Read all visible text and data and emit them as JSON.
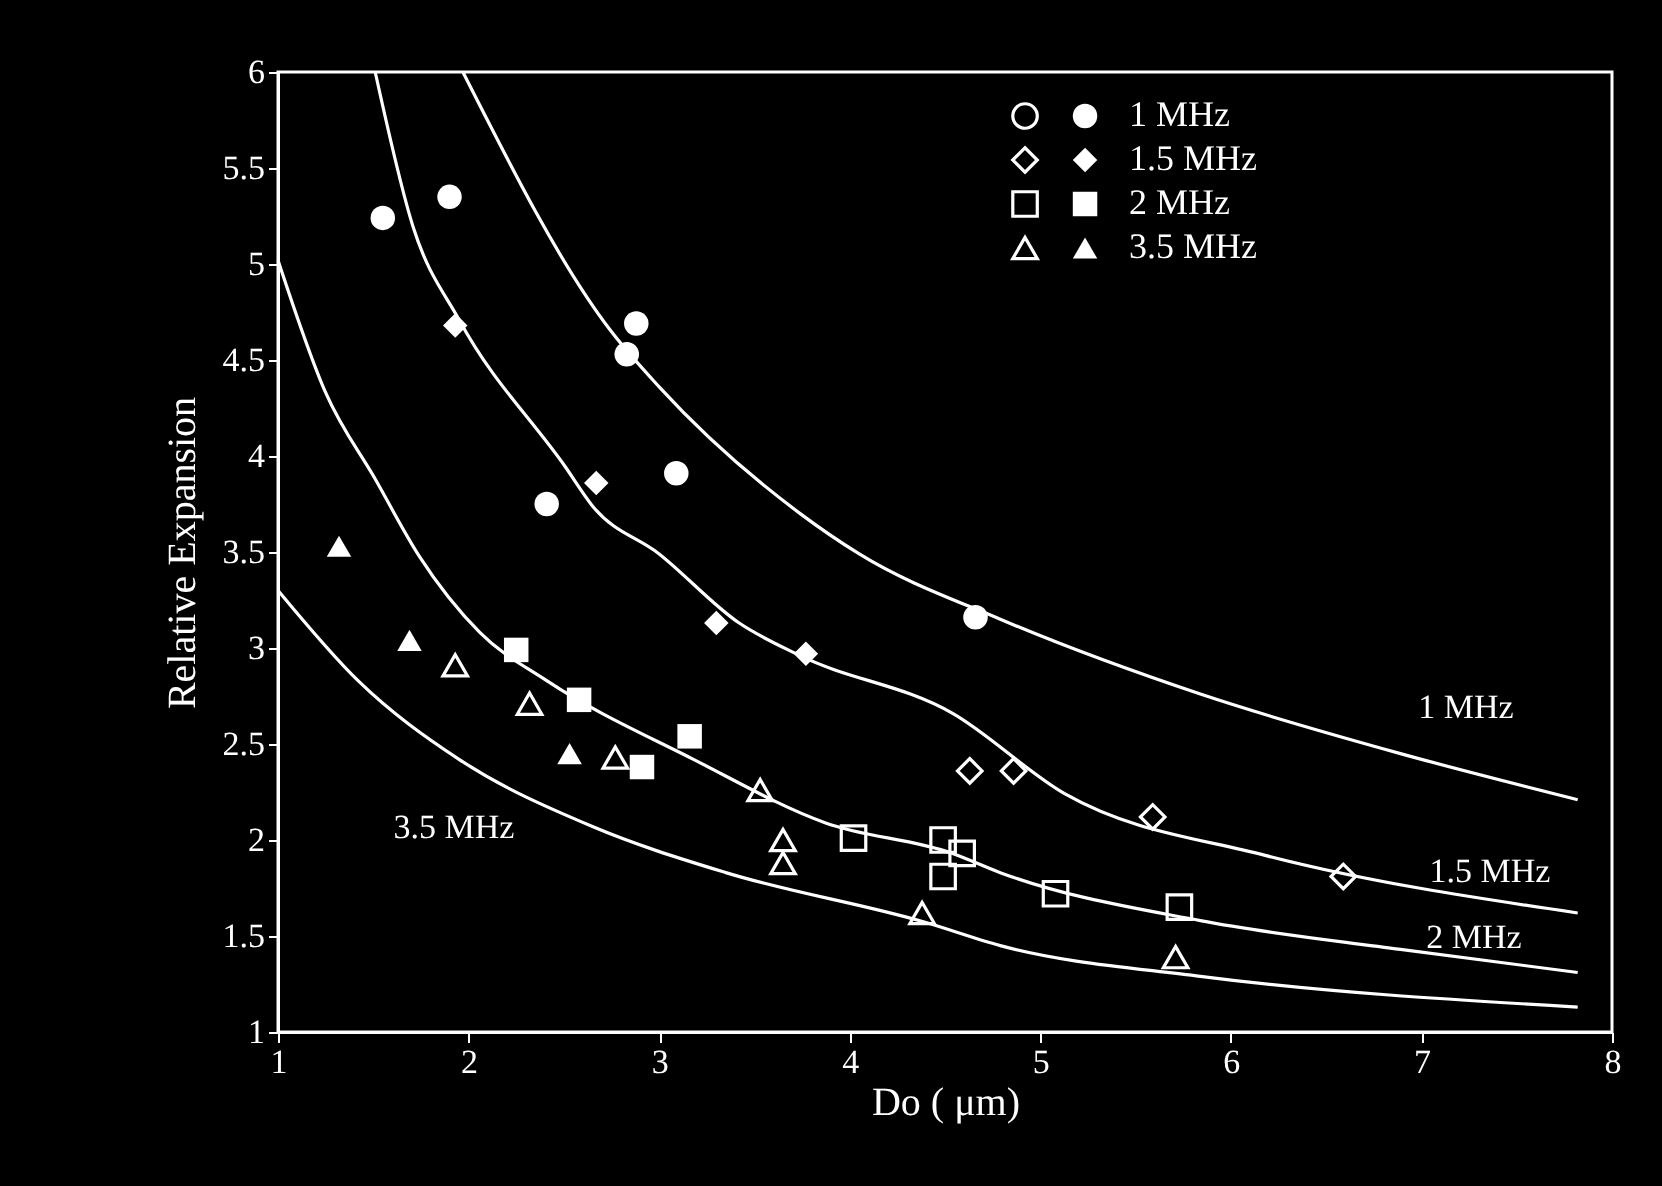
{
  "chart_data": {
    "type": "scatter",
    "xlabel": "Do ( μm)",
    "ylabel": "Relative Expansion",
    "xlim": [
      1,
      8
    ],
    "ylim": [
      1,
      6
    ],
    "xticks": [
      1,
      2,
      3,
      4,
      5,
      6,
      7,
      8
    ],
    "yticks": [
      1,
      1.5,
      2,
      2.5,
      3,
      3.5,
      4,
      4.5,
      5,
      5.5,
      6
    ],
    "legend": "top right",
    "series": [
      {
        "name": "1 MHz",
        "color": "#ffffff",
        "marker": "circle",
        "x": [
          1.55,
          1.9,
          2.88,
          2.83,
          2.41,
          3.09,
          4.66
        ],
        "values": [
          5.24,
          5.35,
          4.69,
          4.53,
          3.75,
          3.91,
          3.16
        ]
      },
      {
        "name": "1.5 MHz",
        "color": "#ffffff",
        "marker": "diamond",
        "x": [
          1.93,
          2.67,
          3.3,
          3.77
        ],
        "values": [
          4.68,
          3.86,
          3.13,
          2.97
        ]
      },
      {
        "color": "#ffffff",
        "marker": "diamond",
        "x": [
          4.63,
          4.86,
          5.59,
          6.59
        ],
        "values": [
          2.36,
          2.36,
          2.12,
          1.81
        ]
      },
      {
        "name": "2 MHz",
        "color": "#ffffff",
        "marker": "square",
        "x": [
          2.25,
          2.58,
          3.16,
          2.91
        ],
        "values": [
          2.99,
          2.73,
          2.54,
          2.38
        ]
      },
      {
        "color": "#ffffff",
        "marker": "square",
        "x": [
          4.02,
          4.49,
          4.59,
          4.49,
          5.08,
          5.73
        ],
        "values": [
          2.01,
          2.0,
          1.93,
          1.81,
          1.72,
          1.65
        ]
      },
      {
        "name": "3.5 MHz",
        "color": "#ffffff",
        "marker": "triangle",
        "x": [
          1.32,
          1.69,
          2.53
        ],
        "values": [
          3.53,
          3.04,
          2.45
        ]
      },
      {
        "color": "#ffffff",
        "marker": "triangle",
        "x": [
          1.93,
          2.32,
          2.77,
          3.53,
          3.65,
          3.65,
          4.38,
          5.71
        ],
        "values": [
          2.91,
          2.71,
          2.43,
          2.26,
          2.0,
          1.88,
          1.62,
          1.39
        ]
      },
      {
        "type": "line",
        "name": "1 MHz",
        "color": "#ffffff",
        "marker": "none",
        "x": [
          1.97,
          2.74,
          3.0,
          3.74,
          4.05,
          4.79,
          5.84,
          6.89,
          7.82
        ],
        "values": [
          6.0,
          4.66,
          4.36,
          3.7,
          3.49,
          3.15,
          2.76,
          2.45,
          2.21
        ]
      },
      {
        "type": "line",
        "name": "1.5 MHz",
        "color": "#ffffff",
        "marker": "none",
        "x": [
          1.51,
          1.71,
          1.95,
          2.51,
          2.65,
          3.0,
          3.42,
          3.74,
          4.54,
          5.13,
          6.18,
          7.82
        ],
        "values": [
          6.0,
          5.19,
          4.71,
          3.94,
          3.74,
          3.49,
          3.13,
          2.96,
          2.66,
          2.24,
          1.92,
          1.62
        ]
      },
      {
        "type": "line",
        "name": "2 MHz",
        "color": "#ffffff",
        "marker": "none",
        "x": [
          1.0,
          1.25,
          1.51,
          1.74,
          2.06,
          2.41,
          3.18,
          3.87,
          4.54,
          4.79,
          5.84,
          6.89,
          7.82
        ],
        "values": [
          5.02,
          4.33,
          3.88,
          3.48,
          3.08,
          2.83,
          2.42,
          2.09,
          1.93,
          1.83,
          1.58,
          1.43,
          1.31
        ]
      },
      {
        "type": "line",
        "name": "3.5 MHz",
        "color": "#ffffff",
        "marker": "none",
        "x": [
          1.0,
          1.42,
          1.95,
          2.65,
          3.35,
          4.4,
          4.79,
          5.84,
          7.82
        ],
        "values": [
          3.3,
          2.83,
          2.42,
          2.07,
          1.83,
          1.57,
          1.45,
          1.29,
          1.13
        ]
      }
    ]
  }
}
